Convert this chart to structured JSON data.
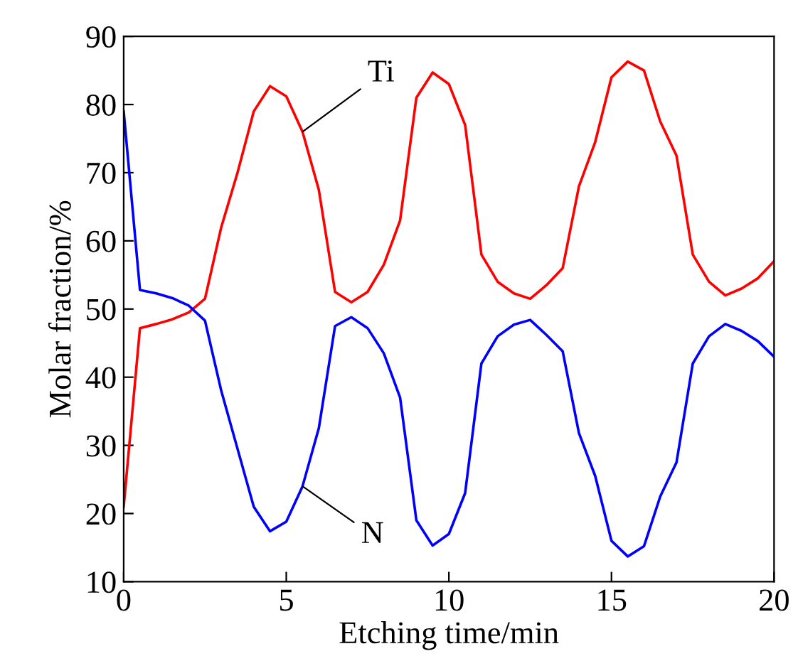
{
  "chart_data": {
    "type": "line",
    "xlabel": "Etching time/min",
    "ylabel": "Molar fraction/%",
    "x": [
      0,
      0.5,
      1,
      1.5,
      2,
      2.5,
      3,
      3.5,
      4,
      4.5,
      5,
      5.5,
      6,
      6.5,
      7,
      7.5,
      8,
      8.5,
      9,
      9.5,
      10,
      10.5,
      11,
      11.5,
      12,
      12.5,
      13,
      13.5,
      14,
      14.5,
      15,
      15.5,
      16,
      16.5,
      17,
      17.5,
      18,
      18.5,
      19,
      19.5,
      20
    ],
    "series": [
      {
        "name": "Ti",
        "color": "#ff0000",
        "values": [
          21,
          47.2,
          47.8,
          48.5,
          49.5,
          51.5,
          62,
          70,
          79,
          82.7,
          81.2,
          76,
          67.5,
          52.5,
          51,
          52.5,
          56.5,
          63,
          81,
          84.7,
          83,
          77,
          58,
          54,
          52.3,
          51.5,
          53.5,
          56,
          68,
          74.5,
          84,
          86.3,
          85,
          77.5,
          72.5,
          58,
          54,
          52,
          53,
          54.5,
          57
        ]
      },
      {
        "name": "N",
        "color": "#0000ff",
        "values": [
          79,
          52.8,
          52.3,
          51.6,
          50.5,
          48.3,
          38,
          29.5,
          21,
          17.4,
          18.8,
          24,
          32.5,
          47.5,
          48.8,
          47.2,
          43.5,
          37,
          19,
          15.3,
          17,
          23,
          42,
          46,
          47.7,
          48.4,
          46.2,
          43.8,
          31.8,
          25.5,
          16,
          13.7,
          15.2,
          22.5,
          27.5,
          42,
          46,
          47.8,
          46.8,
          45.3,
          43
        ]
      }
    ],
    "xlim": [
      0,
      20
    ],
    "ylim": [
      10,
      90
    ],
    "xticks": [
      0,
      5,
      10,
      15,
      20
    ],
    "yticks": [
      10,
      20,
      30,
      40,
      50,
      60,
      70,
      80,
      90
    ],
    "grid": false,
    "legend": false,
    "marker": "none",
    "line_style": "solid"
  }
}
